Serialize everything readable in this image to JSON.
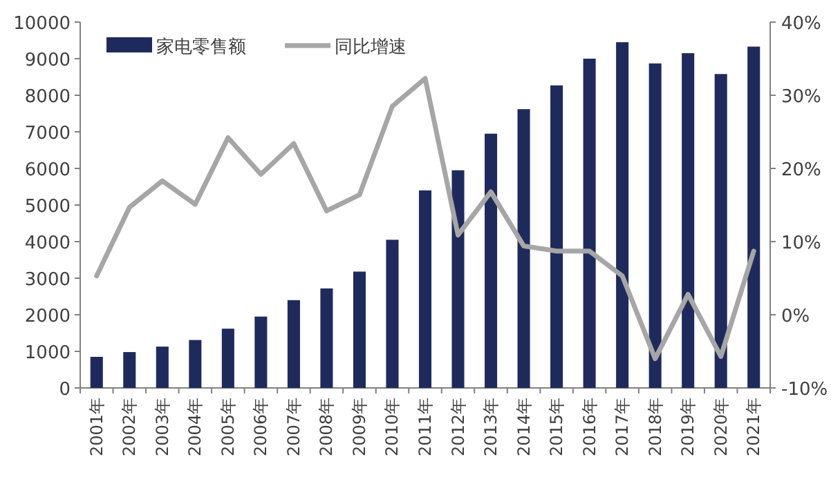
{
  "chart_data": {
    "type": "bar",
    "categories": [
      "2001年",
      "2002年",
      "2003年",
      "2004年",
      "2005年",
      "2006年",
      "2007年",
      "2008年",
      "2009年",
      "2010年",
      "2011年",
      "2012年",
      "2013年",
      "2014年",
      "2015年",
      "2016年",
      "2017年",
      "2018年",
      "2019年",
      "2020年",
      "2021年"
    ],
    "series": [
      {
        "name": "家电零售额",
        "color": "#1f2a5c",
        "values": [
          850,
          980,
          1130,
          1310,
          1620,
          1950,
          2400,
          2720,
          3180,
          4050,
          5400,
          5950,
          6950,
          7620,
          8270,
          9000,
          9450,
          8870,
          9150,
          8580,
          9330
        ]
      },
      {
        "name": "同比增速",
        "type": "line",
        "axis": "y2",
        "color": "#a6a6a6",
        "values": [
          5.3,
          14.7,
          18.3,
          15.1,
          24.2,
          19.2,
          23.4,
          14.2,
          16.4,
          28.5,
          32.3,
          10.9,
          16.8,
          9.4,
          8.7,
          8.7,
          5.3,
          -6.0,
          2.8,
          -5.7,
          8.7
        ]
      }
    ],
    "ylim": [
      0,
      10000
    ],
    "yticks": [
      0,
      1000,
      2000,
      3000,
      4000,
      5000,
      6000,
      7000,
      8000,
      9000,
      10000
    ],
    "y2lim": [
      -10,
      40
    ],
    "y2ticks": [
      {
        "value": -10,
        "label": "-10%"
      },
      {
        "value": 0,
        "label": "0%"
      },
      {
        "value": 10,
        "label": "10%"
      },
      {
        "value": 20,
        "label": "20%"
      },
      {
        "value": 30,
        "label": "30%"
      },
      {
        "value": 40,
        "label": "40%"
      }
    ],
    "legend": "top left",
    "grid": false
  }
}
